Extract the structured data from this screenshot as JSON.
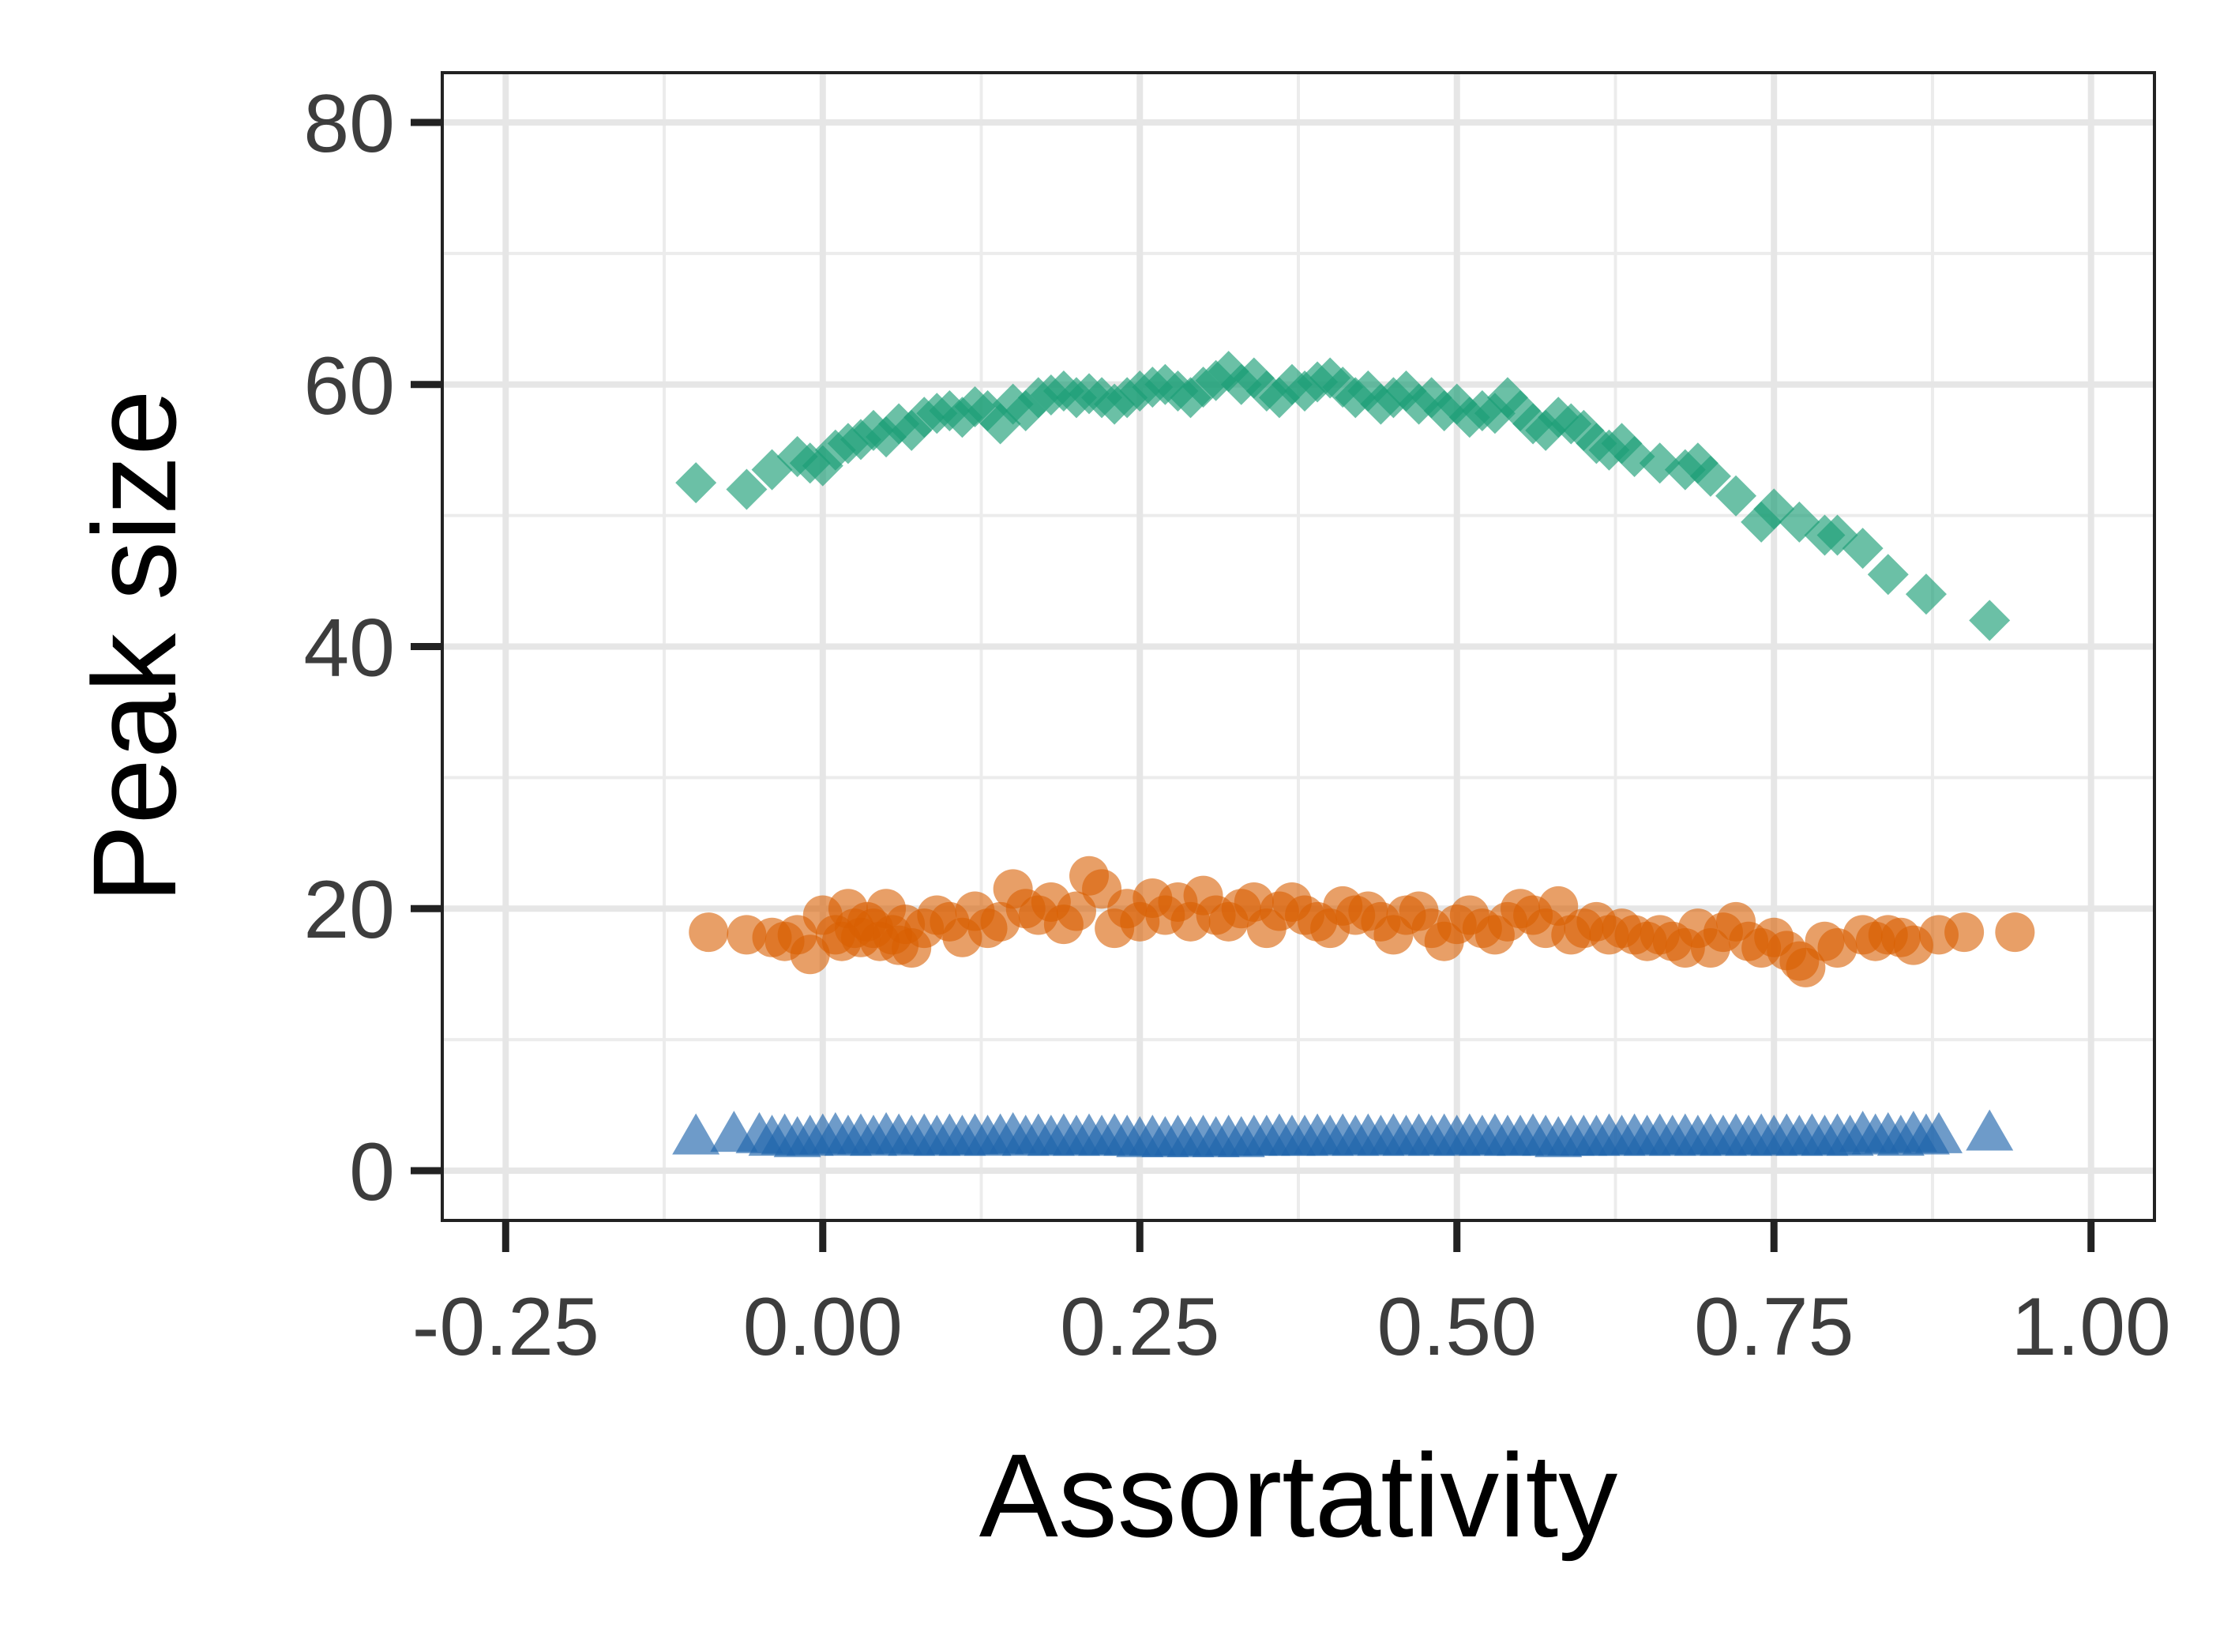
{
  "chart_data": {
    "type": "scatter",
    "title": "",
    "xlabel": "Assortativity",
    "ylabel": "Peak size",
    "xlim": [
      -0.3,
      1.05
    ],
    "ylim": [
      -3.8,
      83.8
    ],
    "x_ticks": [
      -0.25,
      0.0,
      0.25,
      0.5,
      0.75,
      1.0
    ],
    "x_tick_labels": [
      "-0.25",
      "0.00",
      "0.25",
      "0.50",
      "0.75",
      "1.00"
    ],
    "y_ticks": [
      0,
      20,
      40,
      60,
      80
    ],
    "y_tick_labels": [
      "0",
      "20",
      "40",
      "60",
      "80"
    ],
    "grid": true,
    "legend": "none",
    "series": [
      {
        "marker": "diamond",
        "color": "#1b9e77",
        "opacity": 0.65,
        "points": [
          [
            -0.1,
            52.5
          ],
          [
            -0.06,
            52.0
          ],
          [
            -0.04,
            53.5
          ],
          [
            -0.02,
            54.5
          ],
          [
            -0.01,
            54.0
          ],
          [
            0.0,
            53.8
          ],
          [
            0.01,
            55.0
          ],
          [
            0.02,
            55.5
          ],
          [
            0.03,
            55.8
          ],
          [
            0.04,
            56.5
          ],
          [
            0.05,
            56.0
          ],
          [
            0.06,
            57.0
          ],
          [
            0.07,
            56.5
          ],
          [
            0.08,
            57.5
          ],
          [
            0.09,
            57.8
          ],
          [
            0.1,
            58.0
          ],
          [
            0.11,
            57.5
          ],
          [
            0.12,
            58.3
          ],
          [
            0.13,
            58.0
          ],
          [
            0.14,
            57.0
          ],
          [
            0.15,
            58.5
          ],
          [
            0.16,
            58.0
          ],
          [
            0.17,
            59.0
          ],
          [
            0.18,
            59.2
          ],
          [
            0.19,
            59.5
          ],
          [
            0.2,
            59.0
          ],
          [
            0.21,
            59.3
          ],
          [
            0.22,
            59.0
          ],
          [
            0.23,
            58.5
          ],
          [
            0.24,
            59.0
          ],
          [
            0.25,
            59.5
          ],
          [
            0.26,
            59.8
          ],
          [
            0.27,
            60.0
          ],
          [
            0.28,
            59.5
          ],
          [
            0.29,
            59.0
          ],
          [
            0.3,
            59.8
          ],
          [
            0.31,
            60.3
          ],
          [
            0.32,
            61.0
          ],
          [
            0.33,
            60.0
          ],
          [
            0.34,
            60.5
          ],
          [
            0.35,
            59.5
          ],
          [
            0.36,
            59.0
          ],
          [
            0.37,
            60.0
          ],
          [
            0.38,
            59.5
          ],
          [
            0.39,
            60.2
          ],
          [
            0.4,
            60.5
          ],
          [
            0.41,
            59.8
          ],
          [
            0.42,
            59.0
          ],
          [
            0.43,
            59.5
          ],
          [
            0.44,
            58.5
          ],
          [
            0.45,
            59.0
          ],
          [
            0.46,
            59.5
          ],
          [
            0.47,
            58.5
          ],
          [
            0.48,
            59.0
          ],
          [
            0.49,
            58.0
          ],
          [
            0.5,
            58.5
          ],
          [
            0.51,
            57.5
          ],
          [
            0.52,
            58.0
          ],
          [
            0.53,
            57.8
          ],
          [
            0.54,
            59.0
          ],
          [
            0.55,
            58.0
          ],
          [
            0.56,
            57.0
          ],
          [
            0.57,
            56.5
          ],
          [
            0.58,
            57.5
          ],
          [
            0.59,
            57.0
          ],
          [
            0.6,
            56.5
          ],
          [
            0.61,
            55.5
          ],
          [
            0.62,
            55.0
          ],
          [
            0.63,
            55.5
          ],
          [
            0.64,
            54.5
          ],
          [
            0.66,
            54.0
          ],
          [
            0.68,
            53.5
          ],
          [
            0.69,
            54.0
          ],
          [
            0.7,
            53.0
          ],
          [
            0.72,
            51.5
          ],
          [
            0.74,
            49.5
          ],
          [
            0.75,
            50.5
          ],
          [
            0.77,
            49.5
          ],
          [
            0.79,
            48.5
          ],
          [
            0.8,
            48.5
          ],
          [
            0.82,
            47.5
          ],
          [
            0.84,
            45.5
          ],
          [
            0.87,
            44.0
          ],
          [
            0.92,
            42.0
          ]
        ]
      },
      {
        "marker": "circle",
        "color": "#d95f02",
        "opacity": 0.6,
        "points": [
          [
            -0.09,
            18.2
          ],
          [
            -0.06,
            18.0
          ],
          [
            -0.04,
            17.8
          ],
          [
            -0.03,
            17.5
          ],
          [
            -0.02,
            18.0
          ],
          [
            -0.01,
            16.5
          ],
          [
            0.0,
            19.5
          ],
          [
            0.01,
            18.0
          ],
          [
            0.015,
            17.5
          ],
          [
            0.02,
            20.0
          ],
          [
            0.025,
            18.5
          ],
          [
            0.03,
            17.8
          ],
          [
            0.035,
            19.0
          ],
          [
            0.04,
            18.5
          ],
          [
            0.045,
            17.5
          ],
          [
            0.05,
            20.0
          ],
          [
            0.055,
            18.0
          ],
          [
            0.06,
            17.2
          ],
          [
            0.065,
            18.8
          ],
          [
            0.07,
            17.0
          ],
          [
            0.08,
            18.5
          ],
          [
            0.09,
            19.5
          ],
          [
            0.1,
            19.0
          ],
          [
            0.11,
            17.8
          ],
          [
            0.12,
            19.8
          ],
          [
            0.13,
            18.5
          ],
          [
            0.14,
            19.0
          ],
          [
            0.15,
            21.5
          ],
          [
            0.16,
            20.0
          ],
          [
            0.17,
            19.5
          ],
          [
            0.18,
            20.5
          ],
          [
            0.19,
            18.8
          ],
          [
            0.2,
            19.8
          ],
          [
            0.21,
            22.5
          ],
          [
            0.22,
            21.5
          ],
          [
            0.23,
            18.5
          ],
          [
            0.24,
            20.0
          ],
          [
            0.25,
            19.0
          ],
          [
            0.26,
            20.8
          ],
          [
            0.27,
            19.5
          ],
          [
            0.28,
            20.5
          ],
          [
            0.29,
            19.0
          ],
          [
            0.3,
            21.0
          ],
          [
            0.31,
            19.5
          ],
          [
            0.32,
            19.0
          ],
          [
            0.33,
            20.0
          ],
          [
            0.34,
            20.5
          ],
          [
            0.35,
            18.5
          ],
          [
            0.36,
            19.8
          ],
          [
            0.37,
            20.5
          ],
          [
            0.38,
            19.5
          ],
          [
            0.39,
            19.0
          ],
          [
            0.4,
            18.5
          ],
          [
            0.41,
            20.2
          ],
          [
            0.42,
            19.5
          ],
          [
            0.43,
            19.8
          ],
          [
            0.44,
            19.0
          ],
          [
            0.45,
            18.0
          ],
          [
            0.46,
            19.5
          ],
          [
            0.47,
            19.8
          ],
          [
            0.48,
            18.5
          ],
          [
            0.49,
            17.5
          ],
          [
            0.5,
            18.8
          ],
          [
            0.51,
            19.5
          ],
          [
            0.52,
            18.5
          ],
          [
            0.53,
            18.0
          ],
          [
            0.54,
            19.0
          ],
          [
            0.55,
            20.0
          ],
          [
            0.56,
            19.5
          ],
          [
            0.57,
            18.5
          ],
          [
            0.58,
            20.2
          ],
          [
            0.59,
            18.0
          ],
          [
            0.6,
            18.5
          ],
          [
            0.61,
            19.0
          ],
          [
            0.62,
            18.0
          ],
          [
            0.63,
            18.5
          ],
          [
            0.64,
            18.0
          ],
          [
            0.65,
            17.5
          ],
          [
            0.66,
            18.0
          ],
          [
            0.67,
            17.5
          ],
          [
            0.68,
            17.0
          ],
          [
            0.69,
            18.5
          ],
          [
            0.7,
            17.0
          ],
          [
            0.71,
            18.2
          ],
          [
            0.72,
            19.0
          ],
          [
            0.73,
            17.5
          ],
          [
            0.74,
            17.0
          ],
          [
            0.75,
            17.8
          ],
          [
            0.76,
            16.8
          ],
          [
            0.77,
            16.0
          ],
          [
            0.775,
            15.5
          ],
          [
            0.79,
            17.5
          ],
          [
            0.8,
            17.0
          ],
          [
            0.82,
            18.0
          ],
          [
            0.83,
            17.5
          ],
          [
            0.84,
            18.0
          ],
          [
            0.85,
            17.8
          ],
          [
            0.86,
            17.2
          ],
          [
            0.88,
            18.0
          ],
          [
            0.9,
            18.2
          ],
          [
            0.94,
            18.2
          ]
        ]
      },
      {
        "marker": "triangle",
        "color": "#2166ac",
        "opacity": 0.65,
        "points": [
          [
            -0.1,
            2.3
          ],
          [
            -0.07,
            2.5
          ],
          [
            -0.05,
            2.4
          ],
          [
            -0.04,
            2.2
          ],
          [
            -0.03,
            2.3
          ],
          [
            -0.02,
            2.1
          ],
          [
            -0.01,
            2.2
          ],
          [
            0.0,
            2.3
          ],
          [
            0.01,
            2.4
          ],
          [
            0.02,
            2.2
          ],
          [
            0.03,
            2.3
          ],
          [
            0.04,
            2.2
          ],
          [
            0.05,
            2.4
          ],
          [
            0.06,
            2.3
          ],
          [
            0.07,
            2.2
          ],
          [
            0.08,
            2.3
          ],
          [
            0.09,
            2.2
          ],
          [
            0.1,
            2.3
          ],
          [
            0.11,
            2.2
          ],
          [
            0.12,
            2.3
          ],
          [
            0.13,
            2.2
          ],
          [
            0.14,
            2.3
          ],
          [
            0.15,
            2.4
          ],
          [
            0.16,
            2.2
          ],
          [
            0.17,
            2.3
          ],
          [
            0.18,
            2.2
          ],
          [
            0.19,
            2.3
          ],
          [
            0.2,
            2.2
          ],
          [
            0.21,
            2.3
          ],
          [
            0.22,
            2.2
          ],
          [
            0.23,
            2.3
          ],
          [
            0.24,
            2.2
          ],
          [
            0.25,
            2.1
          ],
          [
            0.26,
            2.2
          ],
          [
            0.27,
            2.1
          ],
          [
            0.28,
            2.2
          ],
          [
            0.29,
            2.1
          ],
          [
            0.3,
            2.2
          ],
          [
            0.31,
            2.1
          ],
          [
            0.32,
            2.2
          ],
          [
            0.33,
            2.1
          ],
          [
            0.34,
            2.2
          ],
          [
            0.35,
            2.2
          ],
          [
            0.36,
            2.3
          ],
          [
            0.37,
            2.2
          ],
          [
            0.38,
            2.2
          ],
          [
            0.39,
            2.3
          ],
          [
            0.4,
            2.2
          ],
          [
            0.41,
            2.3
          ],
          [
            0.42,
            2.2
          ],
          [
            0.43,
            2.3
          ],
          [
            0.44,
            2.2
          ],
          [
            0.45,
            2.3
          ],
          [
            0.46,
            2.2
          ],
          [
            0.47,
            2.3
          ],
          [
            0.48,
            2.2
          ],
          [
            0.49,
            2.3
          ],
          [
            0.5,
            2.2
          ],
          [
            0.51,
            2.3
          ],
          [
            0.52,
            2.2
          ],
          [
            0.53,
            2.3
          ],
          [
            0.54,
            2.2
          ],
          [
            0.55,
            2.2
          ],
          [
            0.56,
            2.3
          ],
          [
            0.57,
            2.2
          ],
          [
            0.58,
            2.1
          ],
          [
            0.59,
            2.2
          ],
          [
            0.6,
            2.2
          ],
          [
            0.61,
            2.2
          ],
          [
            0.62,
            2.3
          ],
          [
            0.63,
            2.2
          ],
          [
            0.64,
            2.3
          ],
          [
            0.65,
            2.2
          ],
          [
            0.66,
            2.3
          ],
          [
            0.67,
            2.2
          ],
          [
            0.68,
            2.3
          ],
          [
            0.69,
            2.2
          ],
          [
            0.7,
            2.3
          ],
          [
            0.71,
            2.2
          ],
          [
            0.72,
            2.3
          ],
          [
            0.73,
            2.2
          ],
          [
            0.74,
            2.3
          ],
          [
            0.75,
            2.2
          ],
          [
            0.76,
            2.3
          ],
          [
            0.77,
            2.2
          ],
          [
            0.78,
            2.3
          ],
          [
            0.79,
            2.2
          ],
          [
            0.8,
            2.3
          ],
          [
            0.81,
            2.2
          ],
          [
            0.82,
            2.5
          ],
          [
            0.83,
            2.3
          ],
          [
            0.84,
            2.4
          ],
          [
            0.85,
            2.2
          ],
          [
            0.86,
            2.5
          ],
          [
            0.87,
            2.3
          ],
          [
            0.88,
            2.4
          ],
          [
            0.92,
            2.6
          ]
        ]
      }
    ]
  }
}
